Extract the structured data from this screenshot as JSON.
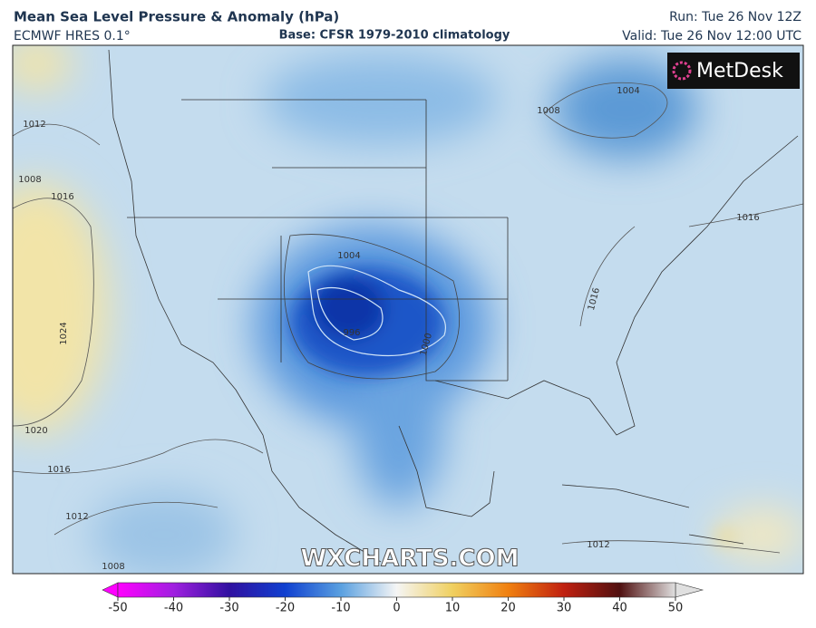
{
  "header": {
    "title": "Mean Sea Level Pressure & Anomaly (hPa)",
    "model": "ECMWF HRES 0.1°",
    "base": "Base: CFSR 1979-2010 climatology",
    "run": "Run: Tue 26 Nov 12Z",
    "valid": "Valid: Tue 26 Nov 12:00 UTC"
  },
  "logo": "MetDesk",
  "watermark": "WXCHARTS.COM",
  "contour_labels": [
    "1012",
    "1008",
    "1016",
    "1024",
    "1020",
    "1016",
    "1012",
    "1008",
    "1004",
    "996",
    "1000",
    "1004",
    "1008",
    "1016",
    "1016",
    "1012"
  ],
  "colorbar": {
    "range": [
      -50,
      50
    ],
    "ticks": [
      -50,
      -40,
      -30,
      -20,
      -10,
      0,
      10,
      20,
      30,
      40,
      50
    ]
  }
}
